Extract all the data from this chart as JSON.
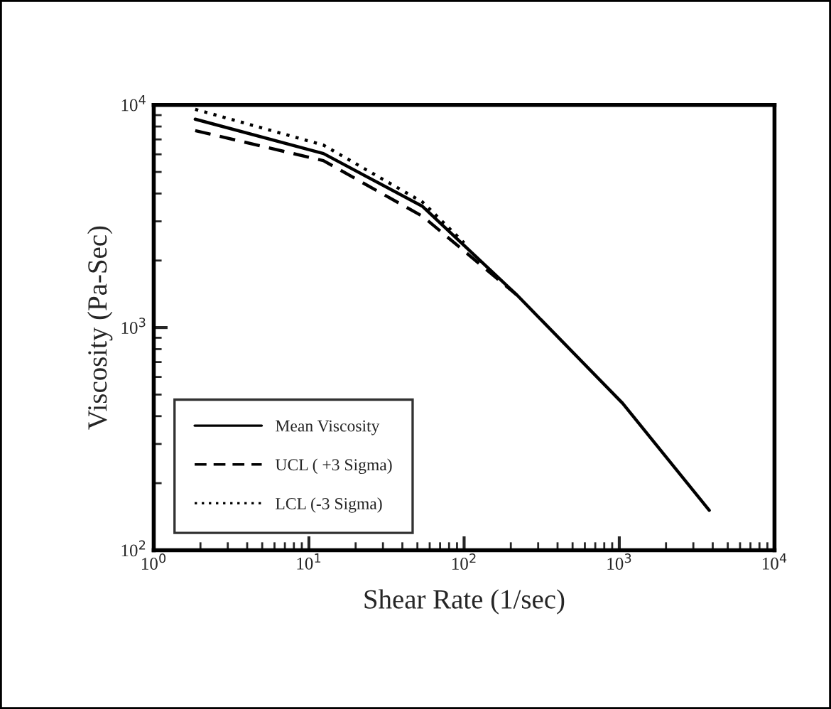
{
  "chart_data": {
    "type": "line",
    "xlabel": "Shear Rate (1/sec)",
    "ylabel": "Viscosity (Pa-Sec)",
    "log": "xy",
    "xlim": [
      1,
      10000
    ],
    "ylim": [
      100,
      10000
    ],
    "xticks": [
      {
        "value": 1,
        "label": "10$^{0}$"
      },
      {
        "value": 10,
        "label": "10$^{1}$"
      },
      {
        "value": 100,
        "label": "10$^{2}$"
      },
      {
        "value": 1000,
        "label": "10$^{3}$"
      },
      {
        "value": 10000,
        "label": "10$^{4}$"
      }
    ],
    "yticks": [
      {
        "value": 100,
        "label": "10$^{2}$"
      },
      {
        "value": 1000,
        "label": "10$^{3}$"
      },
      {
        "value": 10000,
        "label": "10$^{4}$"
      }
    ],
    "grid": false,
    "legend": "bottom left",
    "series": [
      {
        "name": "Mean Viscosity",
        "color": "#000000",
        "line_style": "solid",
        "x": [
          1.85,
          12.4,
          54,
          219,
          1050,
          3800
        ],
        "values": [
          8630,
          6050,
          3500,
          1400,
          457,
          151
        ]
      },
      {
        "name": "UCL ( +3 Sigma)",
        "color": "#000000",
        "line_style": "dashed",
        "x": [
          1.85,
          12.4,
          54,
          219
        ],
        "values": [
          7670,
          5620,
          3160,
          1400
        ]
      },
      {
        "name": "LCL (-3 Sigma)",
        "color": "#000000",
        "line_style": "dotted",
        "x": [
          1.85,
          12.4,
          54,
          100
        ],
        "values": [
          9560,
          6600,
          3660,
          2400
        ]
      }
    ]
  }
}
